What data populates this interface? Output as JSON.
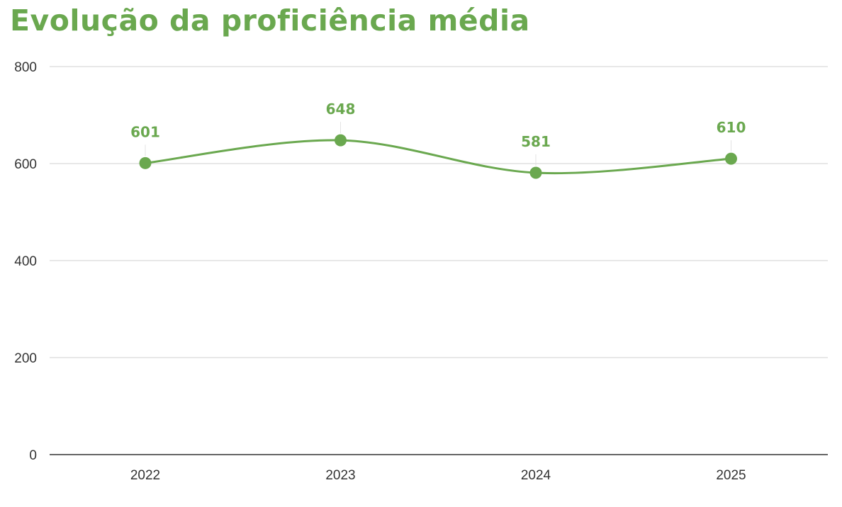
{
  "chart_data": {
    "type": "line",
    "title": "Evolução da proficiência média",
    "categories": [
      "2022",
      "2023",
      "2024",
      "2025"
    ],
    "series": [
      {
        "values": [
          601,
          648,
          581,
          610
        ]
      }
    ],
    "data_labels": [
      "601",
      "648",
      "581",
      "610"
    ],
    "ylim": [
      0,
      800
    ],
    "yticks": [
      0,
      200,
      400,
      600,
      800
    ],
    "ytick_labels": [
      "0",
      "200",
      "400",
      "600",
      "800"
    ],
    "xlabel": "",
    "ylabel": "",
    "grid": true,
    "smooth": true,
    "legend": "none"
  },
  "colors": {
    "accent": "#6aa84f",
    "line": "#6aa84f",
    "grid": "#d9d9d9",
    "axis": "#333333",
    "tick_text": "#333333"
  }
}
